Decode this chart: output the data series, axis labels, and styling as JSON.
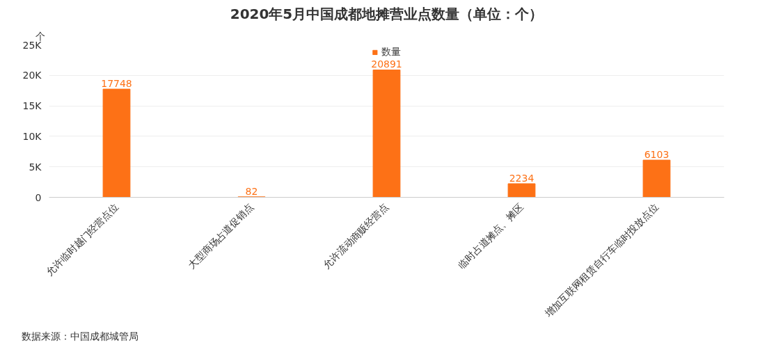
{
  "chart_data": {
    "type": "bar",
    "title": "2020年5月中国成都地摊营业点数量（单位：个）",
    "ylabel": "个",
    "categories": [
      "允许临时越门经营点位",
      "大型商场占道促销点",
      "允许流动商贩经营点",
      "临时占道摊点、摊区",
      "增加互联网租赁自行车临时投放点位"
    ],
    "series": [
      {
        "name": "数量",
        "color": "#fd7116",
        "values": [
          17748,
          82,
          20891,
          2234,
          6103
        ]
      }
    ],
    "ylim": [
      0,
      25000
    ],
    "yticks": [
      0,
      {
        "value": 5000,
        "label": "5K"
      },
      {
        "value": 10000,
        "label": "10K"
      },
      {
        "value": 15000,
        "label": "15K"
      },
      {
        "value": 20000,
        "label": "20K"
      },
      {
        "value": 25000,
        "label": "25K"
      }
    ],
    "grid": "y",
    "legend": "top",
    "data_labels": true,
    "annotations": [
      "数据来源：中国成都城管局"
    ]
  }
}
